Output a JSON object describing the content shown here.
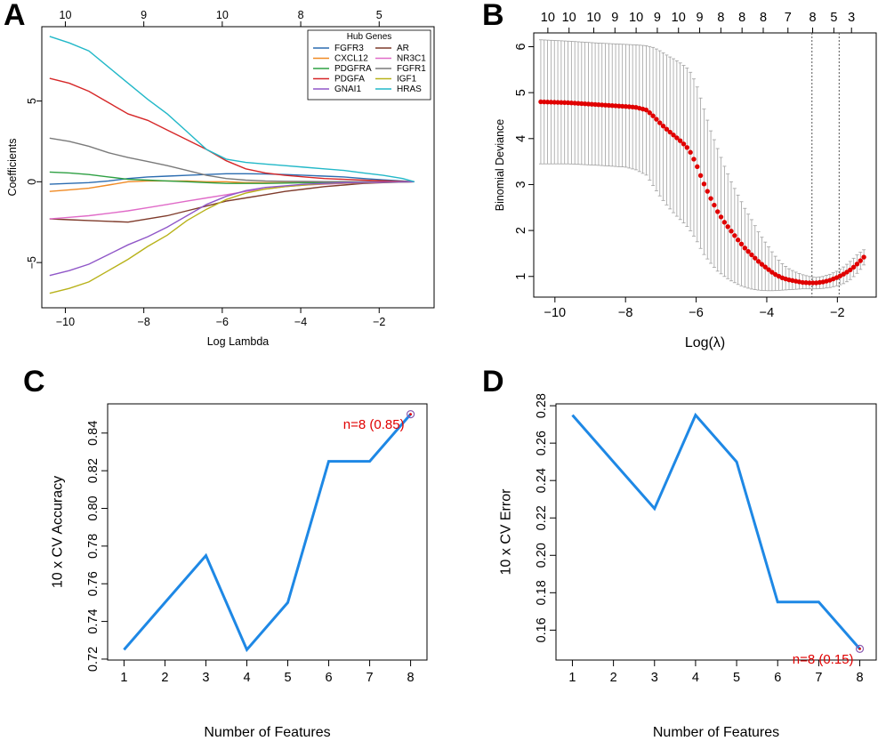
{
  "colors": {
    "axis": "#000000",
    "errorbar": "#a0a0a0",
    "cv_points": "#e00000",
    "accuracy_line": "#1e88e5",
    "annotation": "#e00000",
    "marker_circle": "#8a5bb0"
  },
  "chart_data": [
    {
      "panel": "A",
      "type": "line",
      "title": "",
      "xlabel": "Log Lambda",
      "ylabel": "Coefficients",
      "xlim": [
        -10.6,
        -0.6
      ],
      "ylim": [
        -7.8,
        9.6
      ],
      "xticks": [
        -10,
        -8,
        -6,
        -4,
        -2
      ],
      "xtick_labels": [
        "−10",
        "−8",
        "−6",
        "−4",
        "−2"
      ],
      "yticks": [
        -5,
        0,
        5
      ],
      "ytick_labels": [
        "−5",
        "0",
        "5"
      ],
      "top_ticks": [
        -10,
        -8,
        -6,
        -4,
        -2
      ],
      "top_tick_labels": [
        "10",
        "9",
        "10",
        "8",
        "5"
      ],
      "legend": {
        "title": "Hub Genes",
        "position": "top-right",
        "entries": [
          "FGFR3",
          "AR",
          "CXCL12",
          "NR3C1",
          "PDGFRA",
          "FGFR1",
          "PDGFA",
          "IGF1",
          "GNAI1",
          "HRAS"
        ]
      },
      "x": [
        -10.4,
        -9.9,
        -9.4,
        -8.9,
        -8.4,
        -7.9,
        -7.4,
        -6.9,
        -6.4,
        -5.9,
        -5.4,
        -4.9,
        -4.4,
        -3.9,
        -3.4,
        -2.9,
        -2.4,
        -1.9,
        -1.4,
        -1.1
      ],
      "series": [
        {
          "name": "FGFR3",
          "color": "#2b6cb0",
          "values": [
            -0.15,
            -0.1,
            -0.05,
            0.05,
            0.2,
            0.3,
            0.35,
            0.4,
            0.45,
            0.5,
            0.5,
            0.48,
            0.45,
            0.4,
            0.35,
            0.3,
            0.2,
            0.12,
            0.05,
            0
          ]
        },
        {
          "name": "AR",
          "color": "#7f3b2b",
          "values": [
            -2.3,
            -2.35,
            -2.4,
            -2.45,
            -2.5,
            -2.3,
            -2.1,
            -1.8,
            -1.5,
            -1.2,
            -1.0,
            -0.8,
            -0.6,
            -0.45,
            -0.3,
            -0.2,
            -0.1,
            -0.05,
            -0.02,
            0
          ]
        },
        {
          "name": "CXCL12",
          "color": "#f08a24",
          "values": [
            -0.6,
            -0.5,
            -0.4,
            -0.2,
            0.0,
            0.05,
            0.05,
            0.05,
            0.0,
            0.0,
            -0.05,
            -0.05,
            -0.05,
            -0.05,
            -0.04,
            -0.03,
            -0.02,
            -0.01,
            0,
            0
          ]
        },
        {
          "name": "NR3C1",
          "color": "#e06bc8",
          "values": [
            -2.3,
            -2.2,
            -2.1,
            -1.95,
            -1.8,
            -1.6,
            -1.4,
            -1.2,
            -1.0,
            -0.8,
            -0.6,
            -0.45,
            -0.3,
            -0.2,
            -0.15,
            -0.1,
            -0.06,
            -0.03,
            -0.01,
            0
          ]
        },
        {
          "name": "PDGFRA",
          "color": "#2ea043",
          "values": [
            0.6,
            0.55,
            0.45,
            0.3,
            0.15,
            0.1,
            0.05,
            0.0,
            -0.05,
            -0.1,
            -0.1,
            -0.1,
            -0.08,
            -0.06,
            -0.05,
            -0.04,
            -0.03,
            -0.02,
            -0.01,
            0
          ]
        },
        {
          "name": "FGFR1",
          "color": "#7a7a7a",
          "values": [
            2.7,
            2.5,
            2.2,
            1.8,
            1.5,
            1.25,
            1.0,
            0.7,
            0.4,
            0.2,
            0.1,
            0.05,
            0.03,
            0.02,
            0.01,
            0.01,
            0,
            0,
            0,
            0
          ]
        },
        {
          "name": "PDGFA",
          "color": "#d62728",
          "values": [
            6.4,
            6.1,
            5.6,
            4.9,
            4.2,
            3.8,
            3.2,
            2.6,
            2.0,
            1.3,
            0.8,
            0.55,
            0.4,
            0.3,
            0.2,
            0.15,
            0.1,
            0.06,
            0.02,
            0
          ]
        },
        {
          "name": "IGF1",
          "color": "#b8b21a",
          "values": [
            -6.9,
            -6.6,
            -6.2,
            -5.5,
            -4.8,
            -4.0,
            -3.3,
            -2.4,
            -1.7,
            -1.1,
            -0.7,
            -0.45,
            -0.3,
            -0.2,
            -0.12,
            -0.08,
            -0.05,
            -0.02,
            -0.01,
            0
          ]
        },
        {
          "name": "GNAI1",
          "color": "#9057c8",
          "values": [
            -5.8,
            -5.5,
            -5.1,
            -4.5,
            -3.9,
            -3.4,
            -2.8,
            -2.1,
            -1.4,
            -0.9,
            -0.55,
            -0.35,
            -0.25,
            -0.15,
            -0.1,
            -0.06,
            -0.04,
            -0.02,
            -0.01,
            0
          ]
        },
        {
          "name": "HRAS",
          "color": "#22b8c8",
          "values": [
            9.0,
            8.6,
            8.1,
            7.1,
            6.1,
            5.1,
            4.2,
            3.1,
            2.0,
            1.4,
            1.2,
            1.1,
            1.0,
            0.9,
            0.8,
            0.7,
            0.55,
            0.4,
            0.2,
            0
          ]
        }
      ]
    },
    {
      "panel": "B",
      "type": "scatter",
      "title": "",
      "xlabel": "Log(λ)",
      "ylabel": "Binomial Deviance",
      "xlim": [
        -10.6,
        -0.9
      ],
      "ylim": [
        0.55,
        6.3
      ],
      "xticks": [
        -10,
        -8,
        -6,
        -4,
        -2
      ],
      "xtick_labels": [
        "−10",
        "−8",
        "−6",
        "−4",
        "−2"
      ],
      "yticks": [
        1,
        2,
        3,
        4,
        5,
        6
      ],
      "ytick_labels": [
        "1",
        "2",
        "3",
        "4",
        "5",
        "6"
      ],
      "top_ticks": [
        -10.2,
        -9.6,
        -8.9,
        -8.3,
        -7.7,
        -7.1,
        -6.5,
        -5.9,
        -5.3,
        -4.7,
        -4.1,
        -3.4,
        -2.7,
        -2.1,
        -1.6
      ],
      "top_tick_labels": [
        "10",
        "10",
        "10",
        "9",
        "10",
        "9",
        "10",
        "9",
        "8",
        "8",
        "8",
        "7",
        "8",
        "5",
        "3"
      ],
      "vlines": [
        -2.72,
        -1.95
      ],
      "x": [
        -10.4,
        -9.6,
        -8.8,
        -8.0,
        -7.7,
        -7.4,
        -7.2,
        -7.0,
        -6.8,
        -6.6,
        -6.4,
        -6.2,
        -6.0,
        -5.8,
        -5.6,
        -5.4,
        -5.2,
        -5.0,
        -4.8,
        -4.6,
        -4.4,
        -4.2,
        -4.0,
        -3.8,
        -3.6,
        -3.4,
        -3.2,
        -3.0,
        -2.8,
        -2.6,
        -2.4,
        -2.2,
        -2.0,
        -1.8,
        -1.6,
        -1.4,
        -1.25
      ],
      "mean": [
        4.8,
        4.78,
        4.74,
        4.7,
        4.68,
        4.62,
        4.48,
        4.32,
        4.18,
        4.05,
        3.92,
        3.76,
        3.45,
        3.05,
        2.72,
        2.42,
        2.18,
        1.98,
        1.78,
        1.6,
        1.45,
        1.3,
        1.18,
        1.06,
        0.98,
        0.93,
        0.9,
        0.87,
        0.86,
        0.86,
        0.88,
        0.92,
        0.98,
        1.06,
        1.16,
        1.3,
        1.42
      ],
      "lower": [
        3.45,
        3.45,
        3.42,
        3.38,
        3.32,
        3.2,
        2.95,
        2.72,
        2.52,
        2.35,
        2.2,
        2.04,
        1.8,
        1.5,
        1.3,
        1.12,
        1.0,
        0.9,
        0.82,
        0.76,
        0.72,
        0.7,
        0.69,
        0.69,
        0.7,
        0.71,
        0.72,
        0.73,
        0.73,
        0.73,
        0.74,
        0.76,
        0.8,
        0.85,
        0.95,
        1.1,
        1.25
      ],
      "upper": [
        6.15,
        6.12,
        6.08,
        6.05,
        6.04,
        6.02,
        5.98,
        5.9,
        5.8,
        5.72,
        5.62,
        5.5,
        5.2,
        4.7,
        4.2,
        3.8,
        3.4,
        3.05,
        2.75,
        2.45,
        2.2,
        1.92,
        1.7,
        1.48,
        1.3,
        1.18,
        1.1,
        1.04,
        1.0,
        0.98,
        1.0,
        1.05,
        1.12,
        1.22,
        1.35,
        1.5,
        1.58
      ]
    },
    {
      "panel": "C",
      "type": "line",
      "title": "",
      "xlabel": "Number of Features",
      "ylabel": "10 x CV Accuracy",
      "xlim": [
        0.6,
        8.4
      ],
      "ylim": [
        0.7195,
        0.8555
      ],
      "xticks": [
        1,
        2,
        3,
        4,
        5,
        6,
        7,
        8
      ],
      "xtick_labels": [
        "1",
        "2",
        "3",
        "4",
        "5",
        "6",
        "7",
        "8"
      ],
      "yticks": [
        0.72,
        0.74,
        0.76,
        0.78,
        0.8,
        0.82,
        0.84
      ],
      "ytick_labels": [
        "0.72",
        "0.74",
        "0.76",
        "0.78",
        "0.80",
        "0.82",
        "0.84"
      ],
      "x": [
        1,
        2,
        3,
        4,
        5,
        6,
        7,
        8
      ],
      "values": [
        0.725,
        0.75,
        0.775,
        0.725,
        0.75,
        0.825,
        0.825,
        0.85
      ],
      "highlight": {
        "x": 8,
        "y": 0.85,
        "label": "n=8 (0.85)"
      }
    },
    {
      "panel": "D",
      "type": "line",
      "title": "",
      "xlabel": "Number of Features",
      "ylabel": "10 x CV Error",
      "xlim": [
        0.6,
        8.4
      ],
      "ylim": [
        0.144,
        0.281
      ],
      "xticks": [
        1,
        2,
        3,
        4,
        5,
        6,
        7,
        8
      ],
      "xtick_labels": [
        "1",
        "2",
        "3",
        "4",
        "5",
        "6",
        "7",
        "8"
      ],
      "yticks": [
        0.16,
        0.18,
        0.2,
        0.22,
        0.24,
        0.26,
        0.28
      ],
      "ytick_labels": [
        "0.16",
        "0.18",
        "0.20",
        "0.22",
        "0.24",
        "0.26",
        "0.28"
      ],
      "x": [
        1,
        2,
        3,
        4,
        5,
        6,
        7,
        8
      ],
      "values": [
        0.275,
        0.25,
        0.225,
        0.275,
        0.25,
        0.175,
        0.175,
        0.15
      ],
      "highlight": {
        "x": 8,
        "y": 0.15,
        "label": "n=8 (0.15)"
      }
    }
  ]
}
